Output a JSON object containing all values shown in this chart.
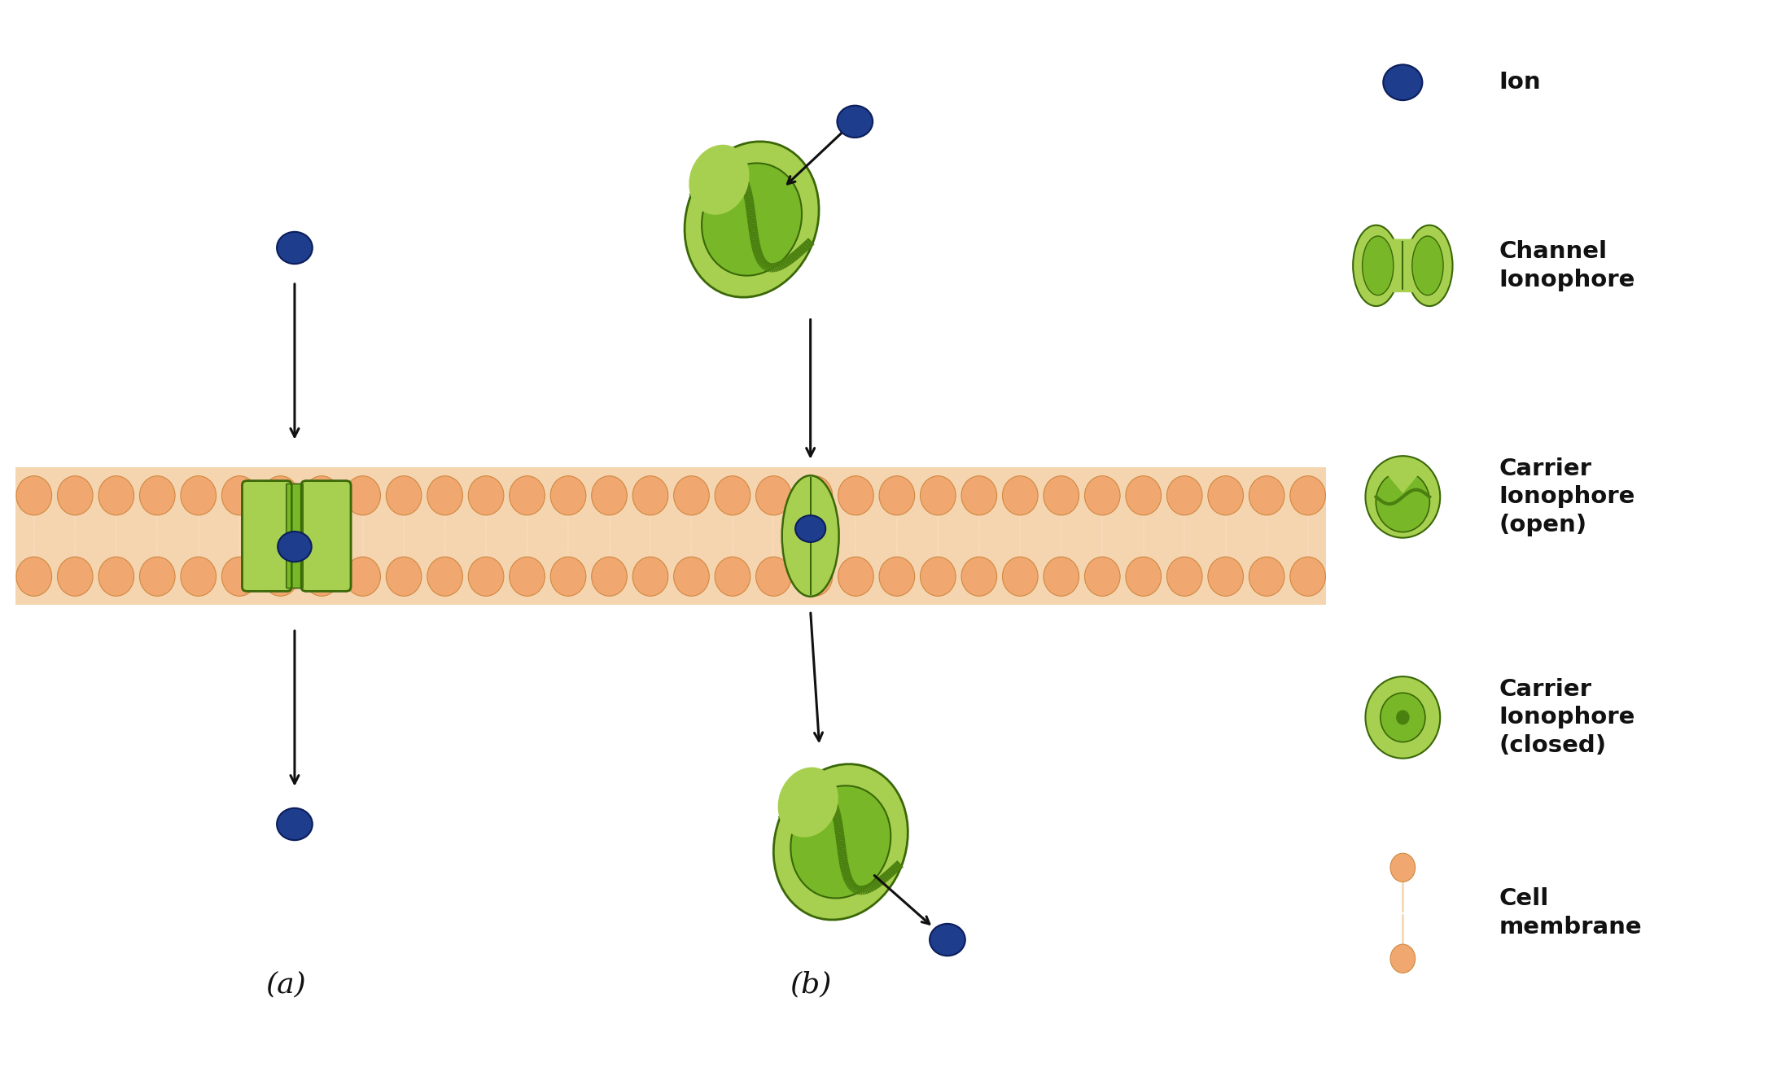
{
  "bg_color": "#ffffff",
  "membrane_bg_color": "#f5d5b0",
  "lipid_head_color": "#f0a870",
  "lipid_head_edge": "#d08840",
  "lipid_tail_color": "#f8d8b8",
  "ch_light": "#a8d050",
  "ch_mid": "#78b828",
  "ch_dark": "#4a8010",
  "ch_stroke": "#3a6808",
  "ion_fill": "#1e3d8c",
  "ion_edge": "#0c1e5c",
  "arrow_color": "#111111",
  "text_color": "#111111",
  "label_a": "(a)",
  "label_b": "(b)",
  "legend_ion": "Ion",
  "legend_channel": "Channel\nIonophore",
  "legend_carrier_open": "Carrier\nIonophore\n(open)",
  "legend_carrier_closed": "Carrier\nIonophore\n(closed)",
  "legend_cell_membrane": "Cell\nmembrane",
  "figsize": [
    21.88,
    13.17
  ],
  "dpi": 100
}
